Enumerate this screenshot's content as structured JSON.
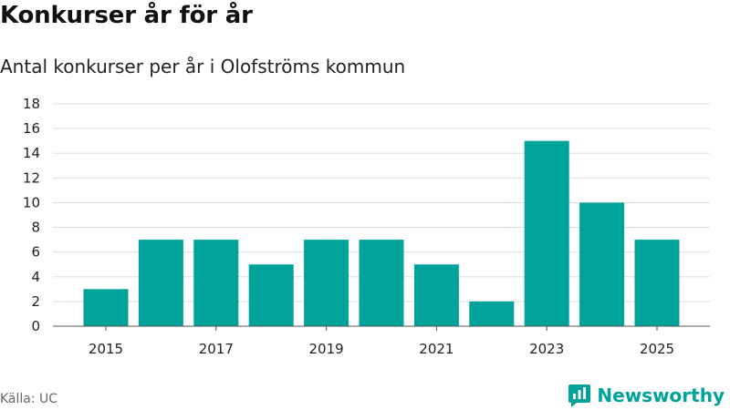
{
  "title": "Konkurser år för år",
  "subtitle": "Antal konkurser per år i Olofströms kommun",
  "source": "Källa: UC",
  "brand": {
    "name": "Newsworthy",
    "icon": "newsworthy-logo-icon"
  },
  "colors": {
    "bar": "#00a39a",
    "grid": "#dddddd",
    "axis": "#555555",
    "brand": "#00a39a"
  },
  "chart_data": {
    "type": "bar",
    "title": "Konkurser år för år",
    "subtitle": "Antal konkurser per år i Olofströms kommun",
    "categories": [
      "2015",
      "2016",
      "2017",
      "2018",
      "2019",
      "2020",
      "2021",
      "2022",
      "2023",
      "2024",
      "2025"
    ],
    "values": [
      3,
      7,
      7,
      5,
      7,
      7,
      5,
      2,
      15,
      10,
      7
    ],
    "x_tick_labels": [
      "2015",
      "2017",
      "2019",
      "2021",
      "2023",
      "2025"
    ],
    "y_ticks": [
      0,
      2,
      4,
      6,
      8,
      10,
      12,
      14,
      16,
      18
    ],
    "ylim": [
      0,
      18
    ],
    "xlabel": "",
    "ylabel": "",
    "grid": true,
    "legend": "none"
  }
}
